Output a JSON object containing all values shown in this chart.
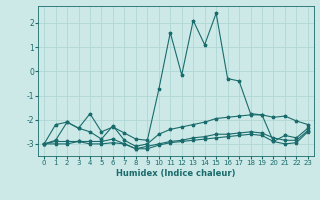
{
  "xlabel": "Humidex (Indice chaleur)",
  "background_color": "#cce9e8",
  "grid_color": "#b0d8d6",
  "line_color": "#1a6b6b",
  "xlim": [
    -0.5,
    23.5
  ],
  "ylim": [
    -3.5,
    2.7
  ],
  "yticks": [
    -3,
    -2,
    -1,
    0,
    1,
    2
  ],
  "xticks": [
    0,
    1,
    2,
    3,
    4,
    5,
    6,
    7,
    8,
    9,
    10,
    11,
    12,
    13,
    14,
    15,
    16,
    17,
    18,
    19,
    20,
    21,
    22,
    23
  ],
  "series": [
    {
      "x": [
        0,
        1,
        2,
        3,
        4,
        5,
        6,
        7,
        8,
        9,
        10,
        11,
        12,
        13,
        14,
        15,
        16,
        17,
        18,
        19,
        20,
        21,
        22,
        23
      ],
      "y": [
        -3.0,
        -2.2,
        -2.1,
        -2.35,
        -1.75,
        -2.5,
        -2.3,
        -2.55,
        -2.8,
        -2.85,
        -0.75,
        1.6,
        -0.15,
        2.1,
        1.1,
        2.4,
        -0.3,
        -0.4,
        -1.75,
        -1.8,
        -2.9,
        -2.65,
        -2.75,
        -2.35
      ]
    },
    {
      "x": [
        0,
        1,
        2,
        3,
        4,
        5,
        6,
        7,
        8,
        9,
        10,
        11,
        12,
        13,
        14,
        15,
        16,
        17,
        18,
        19,
        20,
        21,
        22,
        23
      ],
      "y": [
        -3.0,
        -2.85,
        -2.1,
        -2.35,
        -2.5,
        -2.8,
        -2.25,
        -2.85,
        -3.1,
        -3.0,
        -2.6,
        -2.4,
        -2.3,
        -2.2,
        -2.1,
        -1.95,
        -1.9,
        -1.85,
        -1.8,
        -1.8,
        -1.9,
        -1.85,
        -2.05,
        -2.2
      ]
    },
    {
      "x": [
        0,
        1,
        2,
        3,
        4,
        5,
        6,
        7,
        8,
        9,
        10,
        11,
        12,
        13,
        14,
        15,
        16,
        17,
        18,
        19,
        20,
        21,
        22,
        23
      ],
      "y": [
        -3.0,
        -2.9,
        -2.9,
        -2.9,
        -2.9,
        -2.9,
        -2.8,
        -3.0,
        -3.2,
        -3.1,
        -3.0,
        -2.9,
        -2.85,
        -2.75,
        -2.7,
        -2.6,
        -2.6,
        -2.55,
        -2.5,
        -2.55,
        -2.75,
        -2.85,
        -2.85,
        -2.45
      ]
    },
    {
      "x": [
        0,
        1,
        2,
        3,
        4,
        5,
        6,
        7,
        8,
        9,
        10,
        11,
        12,
        13,
        14,
        15,
        16,
        17,
        18,
        19,
        20,
        21,
        22,
        23
      ],
      "y": [
        -3.0,
        -3.0,
        -3.0,
        -2.9,
        -3.0,
        -3.0,
        -2.95,
        -3.0,
        -3.2,
        -3.2,
        -3.05,
        -2.95,
        -2.9,
        -2.85,
        -2.8,
        -2.75,
        -2.7,
        -2.65,
        -2.6,
        -2.65,
        -2.9,
        -3.0,
        -2.95,
        -2.5
      ]
    }
  ]
}
